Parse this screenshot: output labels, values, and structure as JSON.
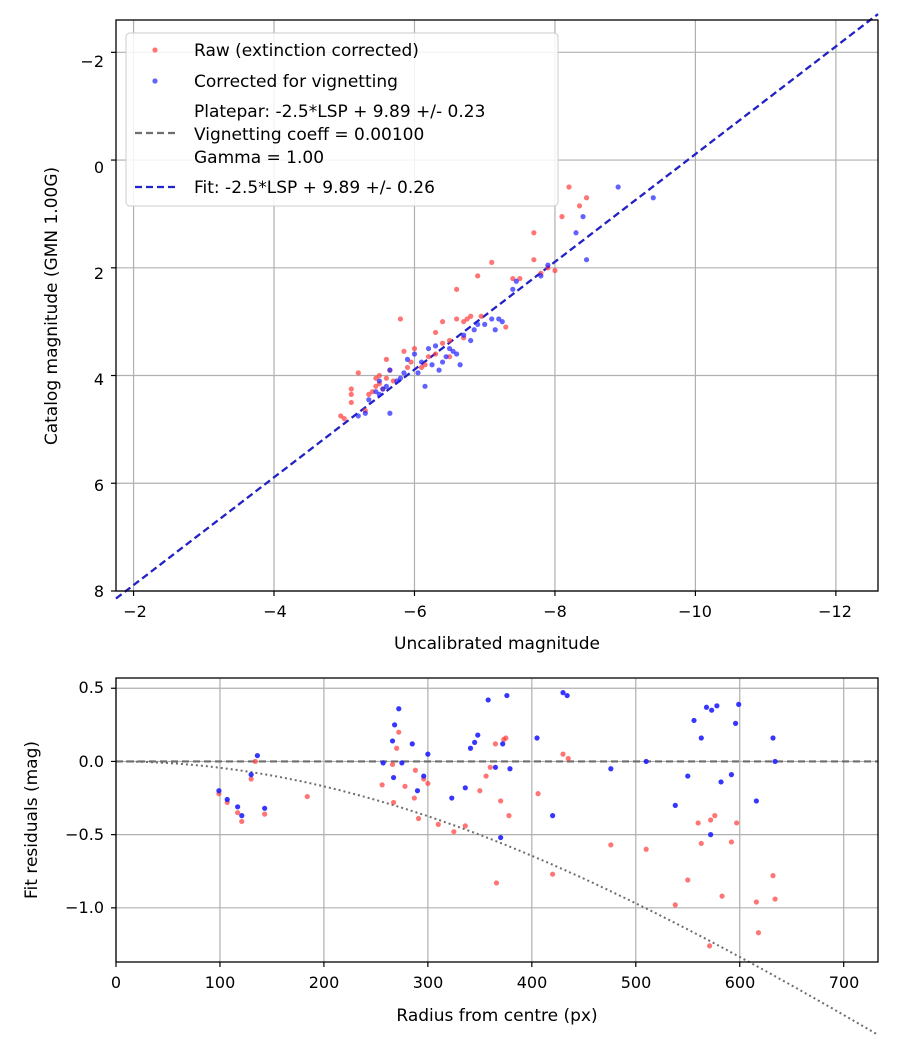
{
  "chart_data": [
    {
      "type": "scatter",
      "xlabel": "Uncalibrated magnitude",
      "ylabel": "Catalog magnitude (GMN 1.00G)",
      "xlim": [
        -1.75,
        -12.6
      ],
      "ylim": [
        8,
        -2.6
      ],
      "xticks": [
        -2,
        -4,
        -6,
        -8,
        -10,
        -12
      ],
      "yticks": [
        -2,
        0,
        2,
        4,
        6,
        8
      ],
      "xtick_labels": [
        "−2",
        "−4",
        "−6",
        "−8",
        "−10",
        "−12"
      ],
      "ytick_labels": [
        "−2",
        "0",
        "2",
        "4",
        "6",
        "8"
      ],
      "grid": true,
      "legend_position": "top-left",
      "colors": {
        "raw": "#ff3b3b",
        "corrected": "#2020ff",
        "platepar": "#6e6e6e",
        "fit": "#2222cc"
      },
      "legend": [
        {
          "kind": "marker",
          "color_key": "raw",
          "lines": [
            "Raw (extinction corrected)"
          ]
        },
        {
          "kind": "marker",
          "color_key": "corrected",
          "lines": [
            "Corrected for vignetting"
          ]
        },
        {
          "kind": "line",
          "color_key": "platepar",
          "lines": [
            "Platepar: -2.5*LSP + 9.89 +/- 0.23",
            "Vignetting coeff = 0.00100",
            "Gamma = 1.00"
          ]
        },
        {
          "kind": "line",
          "color_key": "fit",
          "lines": [
            "Fit: -2.5*LSP + 9.89 +/- 0.26"
          ]
        }
      ],
      "lines": [
        {
          "name": "Platepar",
          "color_key": "platepar",
          "x": [
            -1.75,
            -12.6
          ],
          "y": [
            8.14,
            -2.71
          ]
        },
        {
          "name": "Fit",
          "color_key": "fit",
          "x": [
            -1.75,
            -12.6
          ],
          "y": [
            8.14,
            -2.71
          ]
        }
      ],
      "series": [
        {
          "name": "Raw (extinction corrected)",
          "color_key": "raw",
          "points": [
            [
              -5.0,
              4.8
            ],
            [
              -4.95,
              4.75
            ],
            [
              -5.1,
              4.25
            ],
            [
              -5.1,
              4.35
            ],
            [
              -5.1,
              4.5
            ],
            [
              -5.2,
              3.95
            ],
            [
              -5.3,
              4.65
            ],
            [
              -5.35,
              4.35
            ],
            [
              -5.4,
              4.3
            ],
            [
              -5.45,
              4.2
            ],
            [
              -5.5,
              4.15
            ],
            [
              -5.55,
              4.25
            ],
            [
              -5.6,
              4.05
            ],
            [
              -5.6,
              3.7
            ],
            [
              -5.65,
              3.9
            ],
            [
              -5.7,
              4.1
            ],
            [
              -5.8,
              2.95
            ],
            [
              -5.85,
              3.55
            ],
            [
              -5.9,
              3.85
            ],
            [
              -5.95,
              3.75
            ],
            [
              -6.0,
              3.5
            ],
            [
              -6.1,
              3.85
            ],
            [
              -6.15,
              3.8
            ],
            [
              -6.2,
              3.65
            ],
            [
              -6.3,
              3.6
            ],
            [
              -6.3,
              3.2
            ],
            [
              -6.4,
              3.0
            ],
            [
              -6.4,
              3.4
            ],
            [
              -6.5,
              3.35
            ],
            [
              -6.5,
              3.65
            ],
            [
              -6.6,
              2.95
            ],
            [
              -6.6,
              2.4
            ],
            [
              -6.7,
              3.3
            ],
            [
              -6.7,
              3.0
            ],
            [
              -6.75,
              2.95
            ],
            [
              -6.8,
              2.9
            ],
            [
              -6.9,
              2.15
            ],
            [
              -7.1,
              1.9
            ],
            [
              -7.3,
              3.1
            ],
            [
              -7.4,
              2.2
            ],
            [
              -7.5,
              2.2
            ],
            [
              -7.7,
              1.35
            ],
            [
              -7.7,
              1.85
            ],
            [
              -7.8,
              2.1
            ],
            [
              -7.9,
              2.0
            ],
            [
              -8.0,
              2.05
            ],
            [
              -8.1,
              1.05
            ],
            [
              -8.2,
              0.5
            ],
            [
              -8.35,
              0.85
            ],
            [
              -8.45,
              0.7
            ],
            [
              -5.45,
              4.05
            ],
            [
              -5.5,
              4.0
            ],
            [
              -6.95,
              2.9
            ]
          ]
        },
        {
          "name": "Corrected for vignetting",
          "color_key": "corrected",
          "points": [
            [
              -5.2,
              4.75
            ],
            [
              -5.3,
              4.7
            ],
            [
              -5.35,
              4.45
            ],
            [
              -5.45,
              4.3
            ],
            [
              -5.5,
              4.35
            ],
            [
              -5.5,
              4.1
            ],
            [
              -5.55,
              4.25
            ],
            [
              -5.6,
              4.2
            ],
            [
              -5.65,
              3.9
            ],
            [
              -5.65,
              4.7
            ],
            [
              -5.75,
              4.1
            ],
            [
              -5.8,
              4.05
            ],
            [
              -5.85,
              3.95
            ],
            [
              -5.9,
              3.7
            ],
            [
              -6.0,
              3.6
            ],
            [
              -6.05,
              3.95
            ],
            [
              -6.1,
              3.75
            ],
            [
              -6.15,
              4.2
            ],
            [
              -6.2,
              3.5
            ],
            [
              -6.25,
              3.8
            ],
            [
              -6.3,
              3.45
            ],
            [
              -6.35,
              3.9
            ],
            [
              -6.4,
              3.75
            ],
            [
              -6.45,
              3.65
            ],
            [
              -6.5,
              3.5
            ],
            [
              -6.55,
              3.55
            ],
            [
              -6.6,
              3.6
            ],
            [
              -6.65,
              3.8
            ],
            [
              -6.7,
              3.25
            ],
            [
              -6.8,
              3.35
            ],
            [
              -6.85,
              3.15
            ],
            [
              -6.9,
              3.05
            ],
            [
              -7.0,
              3.05
            ],
            [
              -7.1,
              2.95
            ],
            [
              -7.15,
              3.15
            ],
            [
              -7.2,
              2.95
            ],
            [
              -7.25,
              3.0
            ],
            [
              -7.4,
              2.4
            ],
            [
              -7.45,
              2.25
            ],
            [
              -7.8,
              2.15
            ],
            [
              -7.9,
              1.95
            ],
            [
              -8.3,
              1.35
            ],
            [
              -8.4,
              1.05
            ],
            [
              -8.45,
              1.85
            ],
            [
              -8.9,
              0.5
            ],
            [
              -9.4,
              0.7
            ]
          ]
        }
      ]
    },
    {
      "type": "scatter",
      "xlabel": "Radius from centre (px)",
      "ylabel": "Fit residuals (mag)",
      "xlim": [
        0,
        733
      ],
      "ylim": [
        -1.37,
        0.57
      ],
      "xticks": [
        0,
        100,
        200,
        300,
        400,
        500,
        600,
        700
      ],
      "yticks": [
        0.5,
        0.0,
        -0.5,
        -1.0
      ],
      "xtick_labels": [
        "0",
        "100",
        "200",
        "300",
        "400",
        "500",
        "600",
        "700"
      ],
      "ytick_labels": [
        "0.5",
        "0.0",
        "−0.5",
        "−1.0"
      ],
      "grid": true,
      "reference_lines": [
        {
          "name": "zero",
          "style": "dashed",
          "color_key": "platepar",
          "x": [
            0,
            733
          ],
          "y": [
            0,
            0
          ]
        },
        {
          "name": "vignetting model",
          "style": "dotted",
          "color_key": "platepar",
          "function": "-5*log10(cos^4(atan(r*0.001)))",
          "vignetting_coeff": 0.001
        }
      ],
      "series": [
        {
          "name": "Raw (extinction corrected)",
          "color_key": "raw",
          "points": [
            [
              99,
              -0.22
            ],
            [
              107,
              -0.28
            ],
            [
              117,
              -0.35
            ],
            [
              121,
              -0.41
            ],
            [
              130,
              -0.12
            ],
            [
              134,
              0.0
            ],
            [
              143,
              -0.36
            ],
            [
              184,
              -0.24
            ],
            [
              256,
              -0.16
            ],
            [
              266,
              -0.02
            ],
            [
              267,
              -0.28
            ],
            [
              270,
              0.09
            ],
            [
              272,
              0.2
            ],
            [
              278,
              -0.17
            ],
            [
              287,
              -0.25
            ],
            [
              288,
              -0.06
            ],
            [
              291,
              -0.39
            ],
            [
              296,
              -0.12
            ],
            [
              300,
              -0.15
            ],
            [
              310,
              -0.43
            ],
            [
              325,
              -0.48
            ],
            [
              336,
              -0.44
            ],
            [
              350,
              -0.2
            ],
            [
              356,
              -0.1
            ],
            [
              360,
              -0.04
            ],
            [
              366,
              -0.83
            ],
            [
              370,
              -0.27
            ],
            [
              373,
              0.15
            ],
            [
              378,
              -0.37
            ],
            [
              406,
              -0.22
            ],
            [
              420,
              -0.77
            ],
            [
              430,
              0.05
            ],
            [
              435,
              0.02
            ],
            [
              476,
              -0.57
            ],
            [
              510,
              -0.6
            ],
            [
              538,
              -0.98
            ],
            [
              550,
              -0.81
            ],
            [
              560,
              -0.42
            ],
            [
              563,
              -0.56
            ],
            [
              571,
              -1.26
            ],
            [
              572,
              -0.4
            ],
            [
              576,
              -0.37
            ],
            [
              583,
              -0.92
            ],
            [
              592,
              -0.55
            ],
            [
              597,
              -0.42
            ],
            [
              616,
              -0.96
            ],
            [
              618,
              -1.17
            ],
            [
              632,
              -0.78
            ],
            [
              634,
              -0.94
            ],
            [
              375,
              0.16
            ],
            [
              365,
              0.12
            ]
          ]
        },
        {
          "name": "Corrected for vignetting",
          "color_key": "corrected",
          "points": [
            [
              99,
              -0.2
            ],
            [
              107,
              -0.26
            ],
            [
              117,
              -0.31
            ],
            [
              121,
              -0.37
            ],
            [
              130,
              -0.09
            ],
            [
              136,
              0.04
            ],
            [
              143,
              -0.32
            ],
            [
              257,
              -0.01
            ],
            [
              266,
              0.14
            ],
            [
              267,
              -0.11
            ],
            [
              268,
              0.25
            ],
            [
              272,
              0.36
            ],
            [
              275,
              -0.01
            ],
            [
              285,
              0.12
            ],
            [
              296,
              -0.1
            ],
            [
              300,
              0.05
            ],
            [
              323,
              -0.25
            ],
            [
              336,
              -0.18
            ],
            [
              341,
              0.09
            ],
            [
              348,
              0.18
            ],
            [
              358,
              0.42
            ],
            [
              365,
              -0.04
            ],
            [
              370,
              -0.52
            ],
            [
              372,
              0.12
            ],
            [
              376,
              0.45
            ],
            [
              379,
              -0.05
            ],
            [
              405,
              0.16
            ],
            [
              420,
              -0.37
            ],
            [
              430,
              0.47
            ],
            [
              434,
              0.45
            ],
            [
              476,
              -0.05
            ],
            [
              510,
              0.0
            ],
            [
              538,
              -0.3
            ],
            [
              550,
              -0.1
            ],
            [
              556,
              0.28
            ],
            [
              563,
              0.16
            ],
            [
              568,
              0.37
            ],
            [
              572,
              -0.5
            ],
            [
              573,
              0.35
            ],
            [
              578,
              0.38
            ],
            [
              582,
              -0.14
            ],
            [
              592,
              -0.09
            ],
            [
              596,
              0.26
            ],
            [
              599,
              0.39
            ],
            [
              616,
              -0.27
            ],
            [
              632,
              0.16
            ],
            [
              634,
              0.0
            ],
            [
              345,
              0.13
            ],
            [
              290,
              -0.2
            ]
          ]
        }
      ]
    }
  ]
}
